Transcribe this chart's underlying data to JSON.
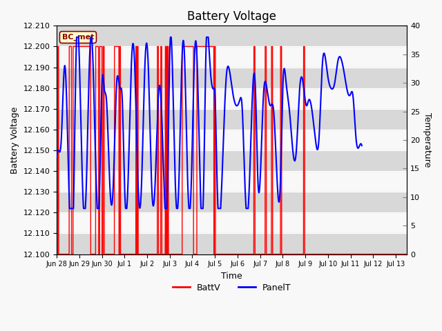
{
  "title": "Battery Voltage",
  "xlabel": "Time",
  "ylabel_left": "Battery Voltage",
  "ylabel_right": "Temperature",
  "batt_ylim": [
    12.1,
    12.21
  ],
  "temp_ylim": [
    0,
    40
  ],
  "batt_yticks": [
    12.1,
    12.11,
    12.12,
    12.13,
    12.14,
    12.15,
    12.16,
    12.17,
    12.18,
    12.19,
    12.2,
    12.21
  ],
  "temp_yticks": [
    0,
    5,
    10,
    15,
    20,
    25,
    30,
    35,
    40
  ],
  "legend_label_batt": "BattV",
  "legend_label_temp": "PanelT",
  "batt_color": "#FF0000",
  "temp_color": "#0000FF",
  "annotation_text": "BC_met",
  "annotation_bg": "#FFFFCC",
  "annotation_border": "#8B0000",
  "bg_color": "#F8F8F8",
  "band_color": "#D8D8D8",
  "title_fontsize": 12,
  "axis_fontsize": 9,
  "tick_fontsize": 8,
  "batt_high": 12.2,
  "batt_low": 12.1,
  "total_days": 15.5,
  "dates_info": [
    [
      0,
      "Jun 28"
    ],
    [
      1,
      "Jun 29"
    ],
    [
      2,
      "Jun 30"
    ],
    [
      3,
      "Jul 1"
    ],
    [
      4,
      "Jul 2"
    ],
    [
      5,
      "Jul 3"
    ],
    [
      6,
      "Jul 4"
    ],
    [
      7,
      "Jul 5"
    ],
    [
      8,
      "Jul 6"
    ],
    [
      9,
      "Jul 7"
    ],
    [
      10,
      "Jul 8"
    ],
    [
      11,
      "Jul 9"
    ],
    [
      12,
      "Jul 10"
    ],
    [
      13,
      "Jul 11"
    ],
    [
      14,
      "Jul 12"
    ],
    [
      15,
      "Jul 13"
    ]
  ],
  "batt_on_intervals": [
    [
      0.04,
      0.08
    ],
    [
      0.55,
      0.65
    ],
    [
      0.72,
      1.5
    ],
    [
      1.72,
      1.85
    ],
    [
      1.9,
      2.0
    ],
    [
      2.05,
      2.1
    ],
    [
      2.55,
      2.75
    ],
    [
      2.78,
      2.82
    ],
    [
      3.5,
      3.52
    ],
    [
      3.53,
      3.55
    ],
    [
      3.56,
      3.6
    ],
    [
      4.45,
      4.5
    ],
    [
      4.6,
      4.65
    ],
    [
      4.8,
      4.82
    ],
    [
      4.83,
      4.85
    ],
    [
      4.86,
      4.88
    ],
    [
      4.89,
      4.91
    ],
    [
      4.92,
      4.94
    ],
    [
      5.55,
      6.05
    ],
    [
      6.2,
      6.95
    ],
    [
      6.97,
      7.02
    ],
    [
      8.72,
      8.77
    ],
    [
      9.22,
      9.27
    ],
    [
      9.5,
      9.55
    ],
    [
      9.9,
      9.95
    ],
    [
      10.92,
      10.97
    ]
  ],
  "temp_keypoints": [
    [
      0.0,
      17
    ],
    [
      0.1,
      18
    ],
    [
      0.2,
      20
    ],
    [
      0.35,
      33
    ],
    [
      0.55,
      10
    ],
    [
      0.75,
      10
    ],
    [
      0.85,
      34
    ],
    [
      1.0,
      34
    ],
    [
      1.15,
      11
    ],
    [
      1.3,
      11
    ],
    [
      1.45,
      34
    ],
    [
      1.6,
      34
    ],
    [
      1.75,
      12
    ],
    [
      1.9,
      12
    ],
    [
      2.0,
      30
    ],
    [
      2.1,
      29
    ],
    [
      2.2,
      27
    ],
    [
      2.35,
      12
    ],
    [
      2.5,
      12
    ],
    [
      2.65,
      30
    ],
    [
      2.8,
      29
    ],
    [
      2.9,
      27
    ],
    [
      3.0,
      12
    ],
    [
      3.15,
      12
    ],
    [
      3.3,
      33
    ],
    [
      3.45,
      33
    ],
    [
      3.6,
      12
    ],
    [
      3.75,
      12
    ],
    [
      3.9,
      33
    ],
    [
      4.05,
      33
    ],
    [
      4.2,
      12
    ],
    [
      4.35,
      12
    ],
    [
      4.5,
      28
    ],
    [
      4.6,
      28
    ],
    [
      4.75,
      12
    ],
    [
      4.9,
      12
    ],
    [
      5.0,
      35
    ],
    [
      5.1,
      35
    ],
    [
      5.25,
      12
    ],
    [
      5.4,
      12
    ],
    [
      5.55,
      35
    ],
    [
      5.65,
      35
    ],
    [
      5.8,
      12
    ],
    [
      5.95,
      12
    ],
    [
      6.1,
      35
    ],
    [
      6.2,
      35
    ],
    [
      6.35,
      12
    ],
    [
      6.5,
      12
    ],
    [
      6.6,
      35
    ],
    [
      6.75,
      35
    ],
    [
      6.85,
      30
    ],
    [
      6.95,
      29
    ],
    [
      7.0,
      28
    ],
    [
      7.1,
      12
    ],
    [
      7.3,
      12
    ],
    [
      7.5,
      31
    ],
    [
      7.65,
      32
    ],
    [
      7.8,
      28
    ],
    [
      7.95,
      26
    ],
    [
      8.1,
      27
    ],
    [
      8.2,
      26
    ],
    [
      8.35,
      10
    ],
    [
      8.5,
      10
    ],
    [
      8.65,
      27
    ],
    [
      8.8,
      28
    ],
    [
      8.9,
      13
    ],
    [
      9.0,
      13
    ],
    [
      9.15,
      28
    ],
    [
      9.3,
      29
    ],
    [
      9.45,
      26
    ],
    [
      9.6,
      25
    ],
    [
      9.75,
      13
    ],
    [
      9.9,
      13
    ],
    [
      10.0,
      29
    ],
    [
      10.15,
      30
    ],
    [
      10.3,
      25
    ],
    [
      10.45,
      18
    ],
    [
      10.6,
      18
    ],
    [
      10.75,
      29
    ],
    [
      10.9,
      30
    ],
    [
      11.05,
      26
    ],
    [
      11.15,
      27
    ],
    [
      11.3,
      25
    ],
    [
      11.45,
      20
    ],
    [
      11.6,
      20
    ],
    [
      11.75,
      33
    ],
    [
      11.9,
      34
    ],
    [
      12.0,
      31
    ],
    [
      12.15,
      29
    ],
    [
      12.3,
      30
    ],
    [
      12.45,
      34
    ],
    [
      12.6,
      34
    ],
    [
      12.75,
      31
    ],
    [
      12.9,
      28
    ],
    [
      13.0,
      28
    ],
    [
      13.1,
      28
    ],
    [
      13.25,
      20
    ],
    [
      13.4,
      19
    ],
    [
      13.5,
      19
    ]
  ]
}
